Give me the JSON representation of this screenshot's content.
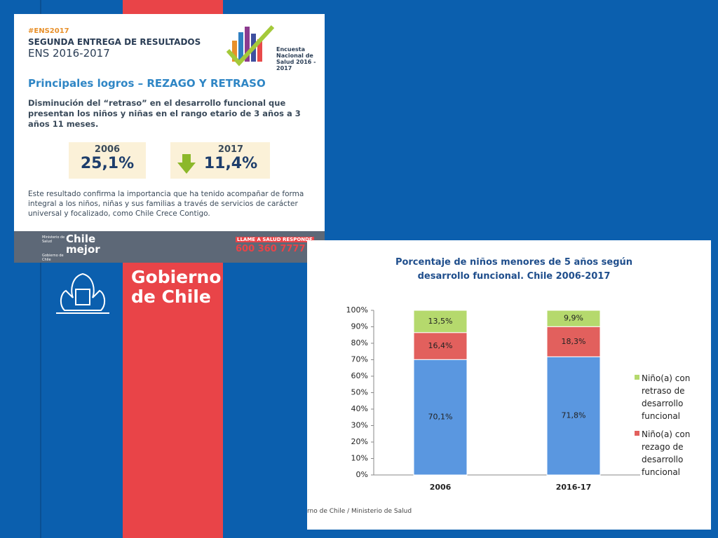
{
  "infographic": {
    "hashtag": "#ENS2017",
    "heading": "SEGUNDA ENTREGA DE RESULTADOS",
    "subheading": "ENS 2016-2017",
    "logo_text": "Encuesta Nacional de Salud 2016 - 2017",
    "section_title": "Principales logros – REZAGO Y RETRASO",
    "lead": "Disminución del “retraso” en el desarrollo funcional que presentan los niños y niñas en el rango etario de 3 años a 3 años 11 meses.",
    "boxes": [
      {
        "year": "2006",
        "value": "25,1%"
      },
      {
        "year": "2017",
        "value": "11,4%"
      }
    ],
    "body": "Este resultado confirma la importancia que ha tenido acompañar de forma integral a los niños, niñas y sus familias a través de servicios de carácter universal y focalizado, como Chile Crece Contigo.",
    "footer": {
      "ministry": "Ministerio de Salud",
      "government": "Gobierno de Chile",
      "brand": "Chile mejor",
      "hotline_title": "LLAME A SALUD RESPONDE",
      "hotline_number": "600 360 7777"
    }
  },
  "branding": {
    "government": "Gobierno de Chile"
  },
  "chart_data": {
    "type": "stacked_bar",
    "title": "Porcentaje de niños menores de 5 años según desarrollo funcional. Chile 2006-2017",
    "source": "rno de Chile / Ministerio de Salud",
    "categories": [
      "2006",
      "2016-17"
    ],
    "series": [
      {
        "color": "#5a97e0",
        "values": [
          70.1,
          71.8
        ],
        "value_labels": [
          "70,1%",
          "71,8%"
        ]
      },
      {
        "name": "Niño(a) con rezago de desarrollo funcional",
        "color": "#e2605d",
        "values": [
          16.4,
          18.3
        ],
        "value_labels": [
          "16,4%",
          "18,3%"
        ]
      },
      {
        "name": "Niño(a) con retraso de desarrollo funcional",
        "color": "#b5d96d",
        "values": [
          13.5,
          9.9
        ],
        "value_labels": [
          "13,5%",
          "9,9%"
        ]
      }
    ],
    "ylim": [
      0,
      100
    ],
    "yticks": [
      {
        "value": 0,
        "label": "0%"
      },
      {
        "value": 10,
        "label": "10%"
      },
      {
        "value": 20,
        "label": "20%"
      },
      {
        "value": 30,
        "label": "30%"
      },
      {
        "value": 40,
        "label": "40%"
      },
      {
        "value": 50,
        "label": "50%"
      },
      {
        "value": 60,
        "label": "60%"
      },
      {
        "value": 70,
        "label": "70%"
      },
      {
        "value": 80,
        "label": "80%"
      },
      {
        "value": 90,
        "label": "90%"
      },
      {
        "value": 100,
        "label": "100%"
      }
    ],
    "legend": "right"
  }
}
